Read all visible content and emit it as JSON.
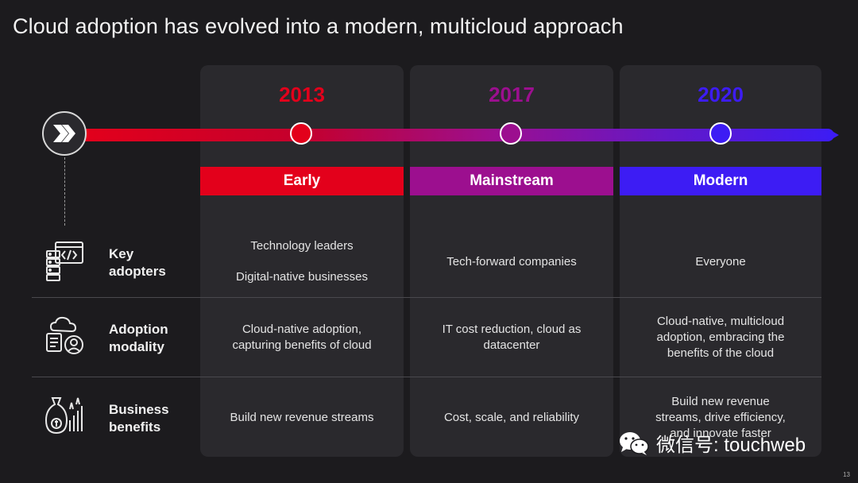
{
  "title": "Cloud adoption has evolved into a modern, multicloud approach",
  "eras": [
    {
      "year": "2013",
      "stage": "Early",
      "color": "#e3001b",
      "year_color": "#e3001b"
    },
    {
      "year": "2017",
      "stage": "Mainstream",
      "color": "#9c0f8f",
      "year_color": "#9c0f8f"
    },
    {
      "year": "2020",
      "stage": "Modern",
      "color": "#3d1cf4",
      "year_color": "#3d1cf4"
    }
  ],
  "rows": [
    {
      "label_line1": "Key",
      "label_line2": "adopters",
      "icon": "code-server-icon",
      "cells": [
        {
          "line1": "Technology leaders",
          "line2": "Digital-native businesses"
        },
        {
          "line1": "Tech-forward companies"
        },
        {
          "line1": "Everyone"
        }
      ]
    },
    {
      "label_line1": "Adoption",
      "label_line2": "modality",
      "icon": "cloud-user-icon",
      "cells": [
        {
          "line1": "Cloud-native adoption,",
          "line2": "capturing benefits of cloud"
        },
        {
          "line1": "IT cost reduction, cloud as",
          "line2": "datacenter"
        },
        {
          "line1": "Cloud-native, multicloud",
          "line2": "adoption, embracing the",
          "line3": "benefits of the cloud"
        }
      ]
    },
    {
      "label_line1": "Business",
      "label_line2": "benefits",
      "icon": "money-growth-icon",
      "cells": [
        {
          "line1": "Build new revenue streams"
        },
        {
          "line1": "Cost, scale, and reliability"
        },
        {
          "line1": "Build new revenue",
          "line2": "streams, drive efficiency,",
          "line3": "and innovate faster"
        }
      ]
    }
  ],
  "watermark": "微信号: touchweb",
  "page_number": "13"
}
